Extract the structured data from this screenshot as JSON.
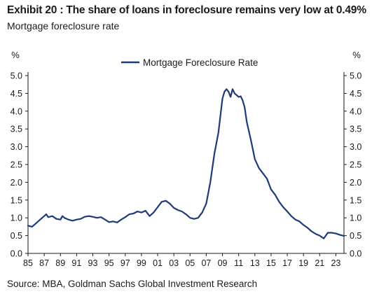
{
  "header": {
    "title": "Exhibit 20 : The share of loans in foreclosure remains very low at 0.49%",
    "subtitle": "Mortgage foreclosure rate"
  },
  "footer": {
    "source": "Source: MBA, Goldman Sachs Global Investment Research"
  },
  "colors": {
    "series": "#1f3a7a",
    "axis": "#1a1a1a"
  },
  "chart_data": {
    "type": "line",
    "ylabel_left": "%",
    "ylabel_right": "%",
    "ylim": [
      0,
      5.0
    ],
    "y_ticks": [
      "0.0",
      "0.5",
      "1.0",
      "1.5",
      "2.0",
      "2.5",
      "3.0",
      "3.5",
      "4.0",
      "4.5",
      "5.0"
    ],
    "xlim": [
      1985,
      2024
    ],
    "x_ticks": [
      "85",
      "87",
      "89",
      "91",
      "93",
      "95",
      "97",
      "99",
      "01",
      "03",
      "05",
      "07",
      "09",
      "11",
      "13",
      "15",
      "17",
      "19",
      "21",
      "23"
    ],
    "grid": false,
    "legend": "top-center",
    "series": [
      {
        "name": "Mortgage Foreclosure Rate",
        "x": [
          1985.0,
          1985.5,
          1986.0,
          1986.5,
          1987.0,
          1987.25,
          1987.5,
          1988.0,
          1988.5,
          1989.0,
          1989.25,
          1989.5,
          1990.0,
          1990.5,
          1991.0,
          1991.5,
          1992.0,
          1992.5,
          1993.0,
          1993.5,
          1994.0,
          1994.5,
          1995.0,
          1995.5,
          1996.0,
          1996.5,
          1997.0,
          1997.5,
          1998.0,
          1998.5,
          1999.0,
          1999.5,
          2000.0,
          2000.5,
          2001.0,
          2001.5,
          2002.0,
          2002.5,
          2003.0,
          2003.5,
          2004.0,
          2004.5,
          2005.0,
          2005.5,
          2006.0,
          2006.5,
          2007.0,
          2007.5,
          2008.0,
          2008.5,
          2009.0,
          2009.25,
          2009.5,
          2009.75,
          2010.0,
          2010.25,
          2010.5,
          2010.75,
          2011.0,
          2011.25,
          2011.5,
          2011.75,
          2012.0,
          2012.5,
          2013.0,
          2013.5,
          2014.0,
          2014.5,
          2015.0,
          2015.5,
          2016.0,
          2016.5,
          2017.0,
          2017.5,
          2018.0,
          2018.5,
          2019.0,
          2019.5,
          2020.0,
          2020.5,
          2021.0,
          2021.5,
          2022.0,
          2022.5,
          2023.0,
          2023.5,
          2024.0
        ],
        "values": [
          0.78,
          0.75,
          0.85,
          0.95,
          1.05,
          1.1,
          1.02,
          1.05,
          0.97,
          0.95,
          1.05,
          1.0,
          0.95,
          0.92,
          0.95,
          0.97,
          1.03,
          1.05,
          1.03,
          1.0,
          1.02,
          0.95,
          0.88,
          0.9,
          0.87,
          0.95,
          1.02,
          1.1,
          1.12,
          1.18,
          1.15,
          1.2,
          1.05,
          1.15,
          1.3,
          1.45,
          1.48,
          1.4,
          1.28,
          1.22,
          1.18,
          1.1,
          1.0,
          0.97,
          1.0,
          1.15,
          1.4,
          2.0,
          2.8,
          3.4,
          4.35,
          4.55,
          4.62,
          4.55,
          4.4,
          4.62,
          4.5,
          4.45,
          4.4,
          4.42,
          4.3,
          4.1,
          3.7,
          3.2,
          2.65,
          2.4,
          2.25,
          2.1,
          1.8,
          1.65,
          1.45,
          1.3,
          1.18,
          1.05,
          0.95,
          0.9,
          0.8,
          0.72,
          0.62,
          0.55,
          0.5,
          0.42,
          0.58,
          0.58,
          0.56,
          0.52,
          0.49
        ]
      }
    ]
  }
}
